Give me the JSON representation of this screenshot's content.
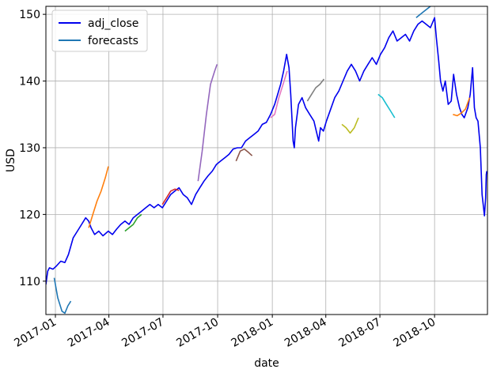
{
  "chart_data": {
    "type": "line",
    "xlabel": "date",
    "ylabel": "USD",
    "xlim": [
      "2016-12-16",
      "2018-12-29"
    ],
    "ylim": [
      105,
      151.2
    ],
    "grid": true,
    "legend_position": "top-left",
    "legend": [
      {
        "name": "adj_close",
        "color": "#0000ee"
      },
      {
        "name": "forecasts",
        "color": "#1f77b4"
      }
    ],
    "xticks": [
      {
        "label": "2017-01",
        "date": "2017-01-01"
      },
      {
        "label": "2017-04",
        "date": "2017-04-01"
      },
      {
        "label": "2017-07",
        "date": "2017-07-01"
      },
      {
        "label": "2017-10",
        "date": "2017-10-01"
      },
      {
        "label": "2018-01",
        "date": "2018-01-01"
      },
      {
        "label": "2018-04",
        "date": "2018-04-01"
      },
      {
        "label": "2018-07",
        "date": "2018-07-01"
      },
      {
        "label": "2018-10",
        "date": "2018-10-01"
      }
    ],
    "yticks": [
      110,
      120,
      130,
      140,
      150
    ],
    "adj_close": {
      "name": "adj_close",
      "color": "#0000ee",
      "points": [
        [
          "2016-12-16",
          109.5
        ],
        [
          "2016-12-19",
          111.5
        ],
        [
          "2016-12-22",
          112.0
        ],
        [
          "2016-12-28",
          111.8
        ],
        [
          "2017-01-03",
          112.3
        ],
        [
          "2017-01-10",
          113.0
        ],
        [
          "2017-01-17",
          112.8
        ],
        [
          "2017-01-23",
          114.0
        ],
        [
          "2017-01-31",
          116.5
        ],
        [
          "2017-02-07",
          117.5
        ],
        [
          "2017-02-14",
          118.5
        ],
        [
          "2017-02-21",
          119.5
        ],
        [
          "2017-02-26",
          119.0
        ],
        [
          "2017-03-02",
          118.0
        ],
        [
          "2017-03-08",
          117.0
        ],
        [
          "2017-03-15",
          117.5
        ],
        [
          "2017-03-22",
          116.8
        ],
        [
          "2017-03-31",
          117.5
        ],
        [
          "2017-04-07",
          117.0
        ],
        [
          "2017-04-14",
          117.8
        ],
        [
          "2017-04-21",
          118.5
        ],
        [
          "2017-04-28",
          119.0
        ],
        [
          "2017-05-05",
          118.5
        ],
        [
          "2017-05-12",
          119.5
        ],
        [
          "2017-05-19",
          120.0
        ],
        [
          "2017-05-26",
          120.5
        ],
        [
          "2017-06-02",
          121.0
        ],
        [
          "2017-06-09",
          121.5
        ],
        [
          "2017-06-16",
          121.0
        ],
        [
          "2017-06-23",
          121.5
        ],
        [
          "2017-06-30",
          121.0
        ],
        [
          "2017-07-07",
          122.0
        ],
        [
          "2017-07-14",
          123.0
        ],
        [
          "2017-07-21",
          123.5
        ],
        [
          "2017-07-28",
          124.0
        ],
        [
          "2017-08-04",
          123.0
        ],
        [
          "2017-08-11",
          122.5
        ],
        [
          "2017-08-18",
          121.5
        ],
        [
          "2017-08-25",
          123.0
        ],
        [
          "2017-09-01",
          124.0
        ],
        [
          "2017-09-08",
          125.0
        ],
        [
          "2017-09-15",
          125.8
        ],
        [
          "2017-09-22",
          126.5
        ],
        [
          "2017-09-29",
          127.5
        ],
        [
          "2017-10-06",
          128.0
        ],
        [
          "2017-10-13",
          128.5
        ],
        [
          "2017-10-20",
          129.0
        ],
        [
          "2017-10-27",
          129.8
        ],
        [
          "2017-11-03",
          130.0
        ],
        [
          "2017-11-10",
          130.0
        ],
        [
          "2017-11-17",
          131.0
        ],
        [
          "2017-11-24",
          131.5
        ],
        [
          "2017-12-01",
          132.0
        ],
        [
          "2017-12-08",
          132.5
        ],
        [
          "2017-12-15",
          133.5
        ],
        [
          "2017-12-22",
          133.8
        ],
        [
          "2017-12-29",
          135.0
        ],
        [
          "2018-01-05",
          136.5
        ],
        [
          "2018-01-10",
          138.0
        ],
        [
          "2018-01-15",
          139.5
        ],
        [
          "2018-01-20",
          141.5
        ],
        [
          "2018-01-25",
          144.0
        ],
        [
          "2018-01-29",
          142.0
        ],
        [
          "2018-02-01",
          138.0
        ],
        [
          "2018-02-05",
          131.0
        ],
        [
          "2018-02-07",
          130.0
        ],
        [
          "2018-02-09",
          133.0
        ],
        [
          "2018-02-14",
          136.5
        ],
        [
          "2018-02-20",
          137.5
        ],
        [
          "2018-02-26",
          136.0
        ],
        [
          "2018-03-05",
          135.0
        ],
        [
          "2018-03-12",
          134.0
        ],
        [
          "2018-03-16",
          132.5
        ],
        [
          "2018-03-20",
          131.0
        ],
        [
          "2018-03-23",
          133.0
        ],
        [
          "2018-03-28",
          132.5
        ],
        [
          "2018-04-02",
          134.0
        ],
        [
          "2018-04-10",
          136.0
        ],
        [
          "2018-04-16",
          137.5
        ],
        [
          "2018-04-23",
          138.5
        ],
        [
          "2018-04-30",
          140.0
        ],
        [
          "2018-05-07",
          141.5
        ],
        [
          "2018-05-14",
          142.5
        ],
        [
          "2018-05-21",
          141.5
        ],
        [
          "2018-05-28",
          140.0
        ],
        [
          "2018-06-04",
          141.5
        ],
        [
          "2018-06-11",
          142.5
        ],
        [
          "2018-06-18",
          143.5
        ],
        [
          "2018-06-25",
          142.5
        ],
        [
          "2018-07-02",
          144.0
        ],
        [
          "2018-07-09",
          145.0
        ],
        [
          "2018-07-16",
          146.5
        ],
        [
          "2018-07-23",
          147.5
        ],
        [
          "2018-07-30",
          146.0
        ],
        [
          "2018-08-06",
          146.5
        ],
        [
          "2018-08-13",
          147.0
        ],
        [
          "2018-08-20",
          146.0
        ],
        [
          "2018-08-27",
          147.5
        ],
        [
          "2018-09-03",
          148.5
        ],
        [
          "2018-09-10",
          149.0
        ],
        [
          "2018-09-17",
          148.5
        ],
        [
          "2018-09-24",
          148.0
        ],
        [
          "2018-10-01",
          149.5
        ],
        [
          "2018-10-04",
          146.5
        ],
        [
          "2018-10-08",
          143.0
        ],
        [
          "2018-10-11",
          140.0
        ],
        [
          "2018-10-15",
          138.5
        ],
        [
          "2018-10-19",
          140.0
        ],
        [
          "2018-10-24",
          136.5
        ],
        [
          "2018-10-29",
          137.0
        ],
        [
          "2018-11-02",
          141.0
        ],
        [
          "2018-11-07",
          138.0
        ],
        [
          "2018-11-12",
          136.0
        ],
        [
          "2018-11-16",
          135.0
        ],
        [
          "2018-11-20",
          134.5
        ],
        [
          "2018-11-26",
          136.0
        ],
        [
          "2018-11-30",
          138.0
        ],
        [
          "2018-12-04",
          142.0
        ],
        [
          "2018-12-07",
          136.0
        ],
        [
          "2018-12-10",
          134.5
        ],
        [
          "2018-12-13",
          134.0
        ],
        [
          "2018-12-17",
          130.0
        ],
        [
          "2018-12-20",
          123.0
        ],
        [
          "2018-12-24",
          119.8
        ],
        [
          "2018-12-26",
          122.5
        ],
        [
          "2018-12-27",
          126.0
        ],
        [
          "2018-12-28",
          126.5
        ]
      ]
    },
    "forecast_segments": [
      {
        "color": "#1f77b4",
        "points": [
          [
            "2016-12-30",
            110.5
          ],
          [
            "2017-01-05",
            107.5
          ],
          [
            "2017-01-12",
            105.5
          ],
          [
            "2017-01-17",
            105.2
          ],
          [
            "2017-01-22",
            106.3
          ],
          [
            "2017-01-27",
            107.0
          ]
        ]
      },
      {
        "color": "#ff7f0e",
        "points": [
          [
            "2017-02-26",
            118.0
          ],
          [
            "2017-03-05",
            120.0
          ],
          [
            "2017-03-12",
            122.0
          ],
          [
            "2017-03-19",
            123.5
          ],
          [
            "2017-03-26",
            125.5
          ],
          [
            "2017-03-31",
            127.2
          ]
        ]
      },
      {
        "color": "#2ca02c",
        "points": [
          [
            "2017-04-28",
            117.5
          ],
          [
            "2017-05-05",
            118.0
          ],
          [
            "2017-05-12",
            118.5
          ],
          [
            "2017-05-19",
            119.5
          ],
          [
            "2017-05-26",
            120.0
          ]
        ]
      },
      {
        "color": "#d62728",
        "points": [
          [
            "2017-06-30",
            121.5
          ],
          [
            "2017-07-07",
            122.5
          ],
          [
            "2017-07-14",
            123.5
          ],
          [
            "2017-07-21",
            123.8
          ],
          [
            "2017-07-28",
            123.6
          ]
        ]
      },
      {
        "color": "#9467bd",
        "points": [
          [
            "2017-08-29",
            125.0
          ],
          [
            "2017-09-05",
            129.5
          ],
          [
            "2017-09-12",
            135.0
          ],
          [
            "2017-09-19",
            139.5
          ],
          [
            "2017-09-26",
            141.5
          ],
          [
            "2017-09-30",
            142.5
          ]
        ]
      },
      {
        "color": "#8c564b",
        "points": [
          [
            "2017-11-01",
            128.0
          ],
          [
            "2017-11-08",
            129.5
          ],
          [
            "2017-11-15",
            129.8
          ],
          [
            "2017-11-22",
            129.3
          ],
          [
            "2017-11-28",
            128.8
          ]
        ]
      },
      {
        "color": "#e377c2",
        "points": [
          [
            "2017-12-29",
            134.5
          ],
          [
            "2018-01-05",
            135.0
          ],
          [
            "2018-01-12",
            137.5
          ],
          [
            "2018-01-19",
            139.5
          ],
          [
            "2018-01-26",
            141.5
          ]
        ]
      },
      {
        "color": "#7f7f7f",
        "points": [
          [
            "2018-03-01",
            137.0
          ],
          [
            "2018-03-08",
            138.0
          ],
          [
            "2018-03-15",
            139.0
          ],
          [
            "2018-03-22",
            139.5
          ],
          [
            "2018-03-29",
            140.3
          ]
        ]
      },
      {
        "color": "#bcbd22",
        "points": [
          [
            "2018-04-28",
            133.5
          ],
          [
            "2018-05-05",
            133.0
          ],
          [
            "2018-05-12",
            132.2
          ],
          [
            "2018-05-19",
            133.0
          ],
          [
            "2018-05-26",
            134.5
          ]
        ]
      },
      {
        "color": "#17becf",
        "points": [
          [
            "2018-06-28",
            138.0
          ],
          [
            "2018-07-05",
            137.5
          ],
          [
            "2018-07-12",
            136.5
          ],
          [
            "2018-07-19",
            135.5
          ],
          [
            "2018-07-26",
            134.5
          ]
        ]
      },
      {
        "color": "#1f77b4",
        "points": [
          [
            "2018-08-31",
            149.5
          ],
          [
            "2018-09-07",
            150.0
          ],
          [
            "2018-09-14",
            150.5
          ],
          [
            "2018-09-21",
            151.0
          ],
          [
            "2018-09-28",
            151.5
          ]
        ]
      },
      {
        "color": "#ff7f0e",
        "points": [
          [
            "2018-11-01",
            135.0
          ],
          [
            "2018-11-08",
            134.8
          ],
          [
            "2018-11-15",
            135.2
          ],
          [
            "2018-11-22",
            135.8
          ],
          [
            "2018-11-29",
            137.5
          ]
        ]
      }
    ]
  }
}
